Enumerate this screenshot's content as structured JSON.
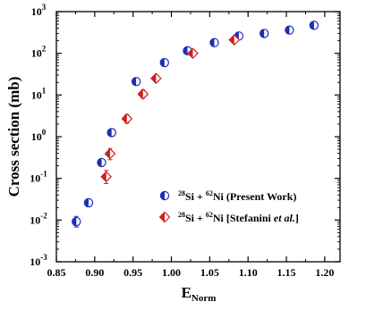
{
  "chart_data": {
    "type": "scatter",
    "xlabel": "E",
    "xlabel_sub": "Norm",
    "ylabel": "Cross section (mb)",
    "xlim": [
      0.85,
      1.22
    ],
    "ylim": [
      0.001,
      1000
    ],
    "yscale": "log",
    "xticks": [
      "0.85",
      "0.90",
      "0.95",
      "1.00",
      "1.05",
      "1.10",
      "1.15",
      "1.20"
    ],
    "xtick_values": [
      0.85,
      0.9,
      0.95,
      1.0,
      1.05,
      1.1,
      1.15,
      1.2
    ],
    "yticks": [
      {
        "base": "10",
        "exp": "-3",
        "value": 0.001
      },
      {
        "base": "10",
        "exp": "-2",
        "value": 0.01
      },
      {
        "base": "10",
        "exp": "-1",
        "value": 0.1
      },
      {
        "base": "10",
        "exp": "0",
        "value": 1
      },
      {
        "base": "10",
        "exp": "1",
        "value": 10
      },
      {
        "base": "10",
        "exp": "2",
        "value": 100
      },
      {
        "base": "10",
        "exp": "3",
        "value": 1000
      }
    ],
    "legend_position": "bottom-right",
    "series": [
      {
        "name": "28Si + 62Ni (Present Work)",
        "legend_parts": {
          "a_mass": "28",
          "a_sym": "Si",
          "plus": " + ",
          "b_mass": "62",
          "b_sym": "Ni",
          "tail": " (Present Work)"
        },
        "marker": "half-filled-circle",
        "color": "#1f2fb4",
        "x": [
          0.876,
          0.892,
          0.909,
          0.922,
          0.954,
          0.991,
          1.021,
          1.056,
          1.088,
          1.121,
          1.154,
          1.186
        ],
        "y": [
          0.0092,
          0.026,
          0.24,
          1.25,
          21,
          60,
          115,
          180,
          260,
          300,
          360,
          470
        ],
        "err_low": [
          0.0068,
          0.021,
          0.21,
          1.1,
          18.5,
          53,
          102,
          160,
          232,
          268,
          322,
          420
        ],
        "err_high": [
          0.0122,
          0.032,
          0.27,
          1.42,
          24,
          68,
          130,
          203,
          292,
          336,
          402,
          525
        ]
      },
      {
        "name": "28Si + 62Ni [Stefanini et al.]",
        "legend_parts": {
          "a_mass": "28",
          "a_sym": "Si",
          "plus": " + ",
          "b_mass": "62",
          "b_sym": "Ni",
          "tail_pre": " [Stefanini ",
          "tail_it": "et al.",
          "tail_post": "]"
        },
        "marker": "half-filled-diamond",
        "color": "#cc1f1f",
        "x": [
          0.915,
          0.92,
          0.942,
          0.963,
          0.98,
          1.028,
          1.082
        ],
        "y": [
          0.11,
          0.39,
          2.7,
          10.5,
          25,
          100,
          210
        ],
        "err_low": [
          0.075,
          0.28,
          2.1,
          8.5,
          20.5,
          84,
          178
        ],
        "err_high": [
          0.155,
          0.52,
          3.4,
          13.2,
          30,
          118,
          245
        ]
      }
    ]
  }
}
